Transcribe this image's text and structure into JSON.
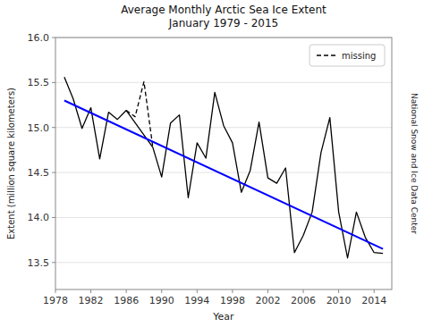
{
  "chart_data": {
    "type": "line",
    "title": "Average Monthly Arctic Sea Ice Extent\nJanuary 1979 - 2015",
    "x_label": "Year",
    "y_label": "Extent (million square kilometers)",
    "annotation": "National Snow and Ice Data Center",
    "xlim": [
      1978,
      2016
    ],
    "ylim": [
      13.2,
      16.0
    ],
    "xticks": [
      1978,
      1982,
      1986,
      1990,
      1994,
      1998,
      2002,
      2006,
      2010,
      2014
    ],
    "yticks": [
      13.5,
      {
        "value": 14.0,
        "label": "14.0"
      },
      14.5,
      {
        "value": 15.0,
        "label": "15.0"
      },
      15.5,
      {
        "value": 16.0,
        "label": "16.0"
      }
    ],
    "grid": true,
    "legend": "upper right",
    "series": [
      {
        "color": "black",
        "line_style": "solid",
        "x": [
          1979,
          1980,
          1981,
          1982,
          1983,
          1984,
          1985,
          1986,
          1989,
          1990,
          1991,
          1992,
          1993,
          1994,
          1995,
          1996,
          1997,
          1998,
          1999,
          2000,
          2001,
          2002,
          2003,
          2004,
          2005,
          2006,
          2007,
          2008,
          2009,
          2010,
          2011,
          2012,
          2013,
          2014,
          2015
        ],
        "values": [
          15.56,
          15.32,
          14.99,
          15.22,
          14.65,
          15.17,
          15.09,
          15.19,
          14.78,
          14.45,
          15.05,
          15.14,
          14.22,
          14.83,
          14.66,
          15.39,
          15.02,
          14.83,
          14.28,
          14.52,
          15.06,
          14.44,
          14.38,
          14.55,
          13.61,
          13.8,
          14.06,
          14.72,
          15.11,
          14.06,
          13.55,
          14.06,
          13.78,
          13.61,
          13.6
        ]
      },
      {
        "name": "missing",
        "color": "black",
        "line_style": "dashed",
        "x": [
          1986,
          1987,
          1988,
          1989
        ],
        "values": [
          15.19,
          15.12,
          15.51,
          14.78
        ]
      },
      {
        "color": "blue",
        "line_style": "solid",
        "x": [
          1979,
          2015
        ],
        "values": [
          15.3,
          13.65
        ]
      }
    ]
  }
}
